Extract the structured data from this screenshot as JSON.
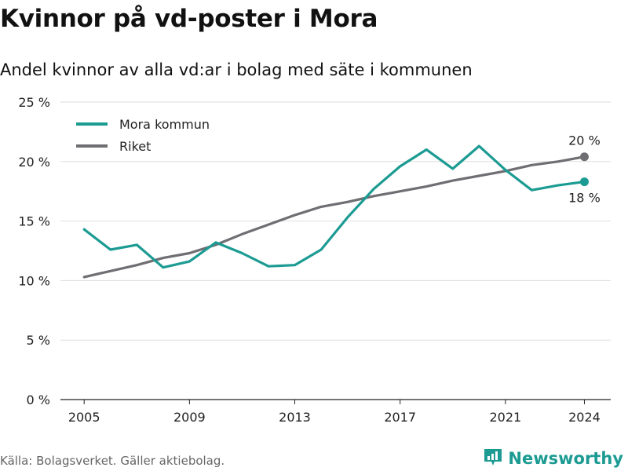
{
  "title": "Kvinnor på vd-poster i Mora",
  "subtitle": "Andel kvinnor av alla vd:ar i bolag med säte i kommunen",
  "source": "Källa: Bolagsverket. Gäller aktiebolag.",
  "brand": {
    "name": "Newsworthy",
    "icon": "newsworthy-logo-icon",
    "color": "#1c9b93"
  },
  "chart_data": {
    "type": "line",
    "title": "Kvinnor på vd-poster i Mora",
    "subtitle": "Andel kvinnor av alla vd:ar i bolag med säte i kommunen",
    "x": [
      2005,
      2006,
      2007,
      2008,
      2009,
      2010,
      2011,
      2012,
      2013,
      2014,
      2015,
      2016,
      2017,
      2018,
      2019,
      2020,
      2021,
      2022,
      2023,
      2024
    ],
    "xticks": [
      2005,
      2009,
      2013,
      2017,
      2021,
      2024
    ],
    "xlim": [
      2004.1,
      2025
    ],
    "ylim": [
      0,
      25
    ],
    "yticks": [
      0,
      5,
      10,
      15,
      20,
      25
    ],
    "ytick_labels": [
      "0 %",
      "5 %",
      "10 %",
      "15 %",
      "20 %",
      "25 %"
    ],
    "grid": true,
    "legend_position": "top-left",
    "series": [
      {
        "name": "Mora kommun",
        "color": "#1c9b93",
        "end_label": "18 %",
        "values": [
          14.3,
          12.6,
          13.0,
          11.1,
          11.6,
          13.2,
          12.3,
          11.2,
          11.3,
          12.6,
          15.3,
          17.7,
          19.6,
          21.0,
          19.4,
          21.3,
          19.3,
          17.6,
          18.0,
          18.3
        ]
      },
      {
        "name": "Riket",
        "color": "#6e6e73",
        "end_label": "20 %",
        "values": [
          10.3,
          10.8,
          11.3,
          11.9,
          12.3,
          13.0,
          13.9,
          14.7,
          15.5,
          16.2,
          16.6,
          17.1,
          17.5,
          17.9,
          18.4,
          18.8,
          19.2,
          19.7,
          20.0,
          20.4
        ]
      }
    ]
  }
}
